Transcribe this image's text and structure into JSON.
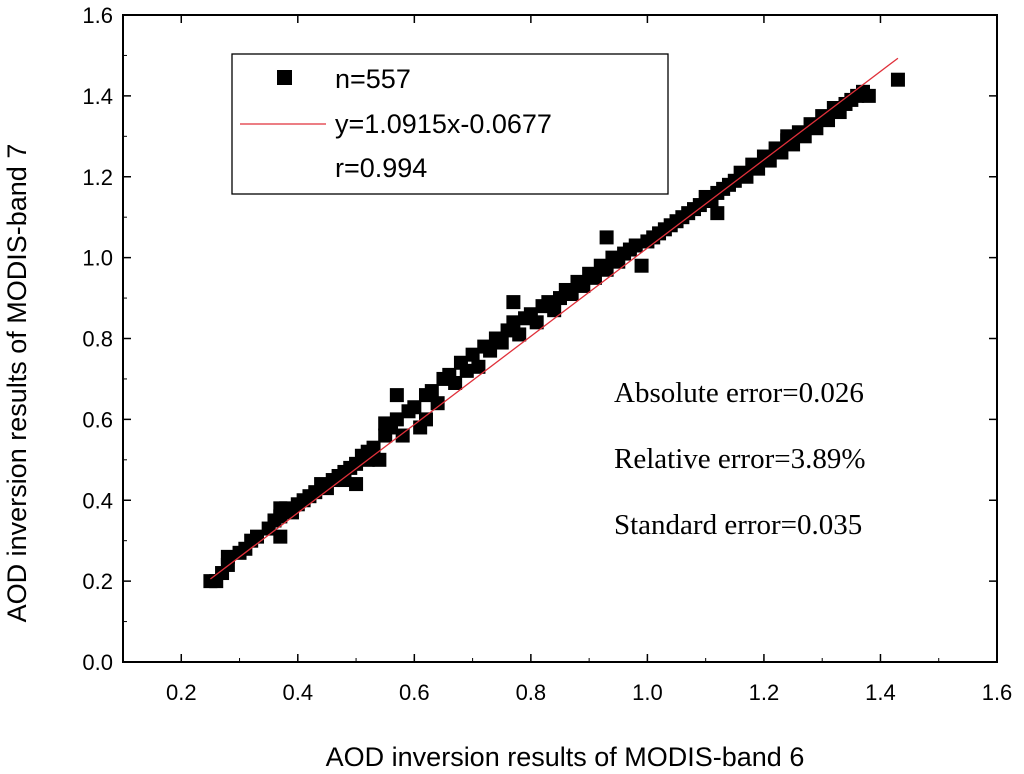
{
  "chart_data": {
    "type": "scatter",
    "xlabel": "AOD inversion results of MODIS-band 6",
    "ylabel": "AOD inversion results of MODIS-band 7",
    "xlim": [
      0.1,
      1.6
    ],
    "ylim": [
      0.0,
      1.6
    ],
    "x_ticks": [
      "0.2",
      "0.4",
      "0.6",
      "0.8",
      "1.0",
      "1.2",
      "1.4",
      "1.6"
    ],
    "y_ticks": [
      "0.0",
      "0.2",
      "0.4",
      "0.6",
      "0.8",
      "1.0",
      "1.2",
      "1.4",
      "1.6"
    ],
    "grid": false,
    "legend": {
      "placement": "top-left",
      "entries": [
        "n=557",
        "y=1.0915x-0.0677",
        "r=0.994"
      ]
    },
    "fit_line": {
      "slope": 1.0915,
      "intercept": -0.0677,
      "x_range": [
        0.25,
        1.43
      ],
      "color": "#e0303a"
    },
    "marker_color": "#000000",
    "annotations": [
      "Absolute error=0.026",
      "Relative error=3.89%",
      "Standard error=0.035"
    ],
    "x": [
      0.25,
      0.26,
      0.27,
      0.28,
      0.28,
      0.3,
      0.31,
      0.32,
      0.33,
      0.35,
      0.36,
      0.37,
      0.37,
      0.38,
      0.39,
      0.4,
      0.41,
      0.42,
      0.43,
      0.44,
      0.45,
      0.46,
      0.47,
      0.48,
      0.49,
      0.5,
      0.5,
      0.51,
      0.52,
      0.53,
      0.54,
      0.55,
      0.55,
      0.56,
      0.57,
      0.58,
      0.59,
      0.6,
      0.61,
      0.62,
      0.63,
      0.64,
      0.65,
      0.66,
      0.67,
      0.68,
      0.69,
      0.7,
      0.71,
      0.72,
      0.73,
      0.74,
      0.75,
      0.76,
      0.77,
      0.78,
      0.79,
      0.8,
      0.81,
      0.82,
      0.83,
      0.84,
      0.85,
      0.86,
      0.87,
      0.88,
      0.89,
      0.9,
      0.91,
      0.92,
      0.93,
      0.94,
      0.95,
      0.96,
      0.97,
      0.98,
      0.99,
      1.0,
      1.01,
      1.02,
      1.03,
      1.04,
      1.05,
      1.06,
      1.07,
      1.08,
      1.09,
      1.1,
      1.11,
      1.12,
      1.13,
      1.14,
      1.15,
      1.16,
      1.17,
      1.18,
      1.19,
      1.2,
      1.21,
      1.22,
      1.23,
      1.24,
      1.25,
      1.26,
      1.27,
      1.28,
      1.29,
      1.3,
      1.31,
      1.32,
      1.33,
      1.34,
      1.35,
      1.36,
      1.37,
      1.38,
      1.43,
      0.37,
      0.57,
      0.77,
      0.93,
      1.12,
      1.24,
      0.52,
      0.62,
      0.48
    ],
    "y": [
      0.2,
      0.2,
      0.22,
      0.24,
      0.26,
      0.27,
      0.28,
      0.3,
      0.31,
      0.33,
      0.35,
      0.36,
      0.31,
      0.38,
      0.37,
      0.39,
      0.4,
      0.41,
      0.42,
      0.44,
      0.43,
      0.45,
      0.46,
      0.47,
      0.48,
      0.49,
      0.44,
      0.51,
      0.52,
      0.53,
      0.5,
      0.56,
      0.59,
      0.58,
      0.6,
      0.56,
      0.62,
      0.63,
      0.58,
      0.66,
      0.67,
      0.64,
      0.7,
      0.71,
      0.69,
      0.74,
      0.72,
      0.76,
      0.73,
      0.78,
      0.77,
      0.8,
      0.79,
      0.82,
      0.84,
      0.81,
      0.85,
      0.86,
      0.84,
      0.88,
      0.89,
      0.87,
      0.9,
      0.92,
      0.91,
      0.94,
      0.93,
      0.96,
      0.95,
      0.98,
      0.97,
      1.0,
      0.99,
      1.01,
      1.02,
      1.03,
      0.98,
      1.04,
      1.05,
      1.06,
      1.07,
      1.08,
      1.09,
      1.1,
      1.11,
      1.12,
      1.13,
      1.15,
      1.14,
      1.16,
      1.17,
      1.18,
      1.19,
      1.21,
      1.2,
      1.23,
      1.22,
      1.25,
      1.24,
      1.27,
      1.26,
      1.29,
      1.28,
      1.31,
      1.3,
      1.33,
      1.32,
      1.35,
      1.34,
      1.37,
      1.36,
      1.38,
      1.39,
      1.4,
      1.41,
      1.4,
      1.44,
      0.38,
      0.66,
      0.89,
      1.05,
      1.11,
      1.3,
      0.5,
      0.6,
      0.45
    ]
  }
}
